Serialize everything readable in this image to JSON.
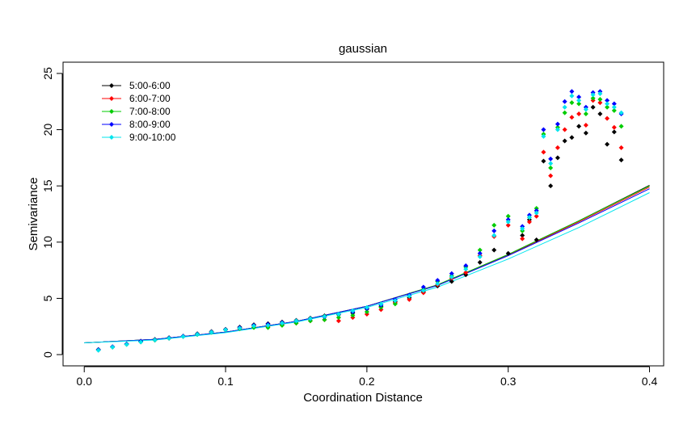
{
  "chart_data": {
    "type": "scatter",
    "title": "gaussian",
    "xlabel": "Coordination Distance",
    "ylabel": "Semivariance",
    "xlim": [
      -0.015,
      0.41
    ],
    "ylim": [
      -1,
      26
    ],
    "xticks": [
      0.0,
      0.1,
      0.2,
      0.3,
      0.4
    ],
    "xtick_labels": [
      "0.0",
      "0.1",
      "0.2",
      "0.3",
      "0.4"
    ],
    "yticks": [
      0,
      5,
      10,
      15,
      20,
      25
    ],
    "ytick_labels": [
      "0",
      "5",
      "10",
      "15",
      "20",
      "25"
    ],
    "grid": false,
    "legend_position": "top-left",
    "series": [
      {
        "name": "5:00-6:00",
        "color": "#000000",
        "points": [
          [
            0.01,
            0.45
          ],
          [
            0.02,
            0.7
          ],
          [
            0.03,
            0.95
          ],
          [
            0.04,
            1.2
          ],
          [
            0.05,
            1.35
          ],
          [
            0.06,
            1.5
          ],
          [
            0.07,
            1.65
          ],
          [
            0.08,
            1.85
          ],
          [
            0.09,
            2.05
          ],
          [
            0.1,
            2.25
          ],
          [
            0.11,
            2.45
          ],
          [
            0.12,
            2.65
          ],
          [
            0.13,
            2.75
          ],
          [
            0.14,
            2.9
          ],
          [
            0.15,
            3.05
          ],
          [
            0.16,
            3.25
          ],
          [
            0.17,
            3.45
          ],
          [
            0.18,
            3.55
          ],
          [
            0.19,
            3.7
          ],
          [
            0.2,
            4.05
          ],
          [
            0.21,
            4.3
          ],
          [
            0.22,
            4.7
          ],
          [
            0.23,
            5.05
          ],
          [
            0.24,
            5.6
          ],
          [
            0.25,
            6.1
          ],
          [
            0.26,
            6.5
          ],
          [
            0.27,
            7.1
          ],
          [
            0.28,
            8.2
          ],
          [
            0.29,
            9.3
          ],
          [
            0.3,
            9.0
          ],
          [
            0.31,
            10.6
          ],
          [
            0.315,
            12.0
          ],
          [
            0.32,
            10.2
          ],
          [
            0.325,
            17.2
          ],
          [
            0.33,
            15.0
          ],
          [
            0.335,
            17.5
          ],
          [
            0.34,
            19.0
          ],
          [
            0.345,
            19.3
          ],
          [
            0.35,
            20.3
          ],
          [
            0.355,
            19.7
          ],
          [
            0.36,
            22.0
          ],
          [
            0.365,
            21.4
          ],
          [
            0.37,
            18.7
          ],
          [
            0.375,
            19.8
          ],
          [
            0.38,
            17.3
          ]
        ],
        "fit": [
          [
            0.0,
            1.05
          ],
          [
            0.05,
            1.35
          ],
          [
            0.1,
            2.0
          ],
          [
            0.15,
            2.95
          ],
          [
            0.2,
            4.3
          ],
          [
            0.25,
            6.2
          ],
          [
            0.3,
            8.9
          ],
          [
            0.35,
            11.9
          ],
          [
            0.4,
            15.05
          ]
        ]
      },
      {
        "name": "6:00-7:00",
        "color": "#ff0000",
        "points": [
          [
            0.01,
            0.4
          ],
          [
            0.02,
            0.68
          ],
          [
            0.03,
            0.92
          ],
          [
            0.04,
            1.15
          ],
          [
            0.05,
            1.3
          ],
          [
            0.06,
            1.45
          ],
          [
            0.07,
            1.62
          ],
          [
            0.08,
            1.8
          ],
          [
            0.09,
            2.0
          ],
          [
            0.1,
            2.2
          ],
          [
            0.11,
            2.3
          ],
          [
            0.12,
            2.45
          ],
          [
            0.13,
            2.5
          ],
          [
            0.14,
            2.65
          ],
          [
            0.15,
            2.8
          ],
          [
            0.16,
            3.0
          ],
          [
            0.17,
            3.1
          ],
          [
            0.18,
            3.0
          ],
          [
            0.19,
            3.3
          ],
          [
            0.2,
            3.6
          ],
          [
            0.21,
            4.0
          ],
          [
            0.22,
            4.6
          ],
          [
            0.23,
            4.9
          ],
          [
            0.24,
            5.5
          ],
          [
            0.25,
            6.2
          ],
          [
            0.26,
            6.8
          ],
          [
            0.27,
            7.3
          ],
          [
            0.28,
            8.8
          ],
          [
            0.29,
            10.5
          ],
          [
            0.3,
            11.5
          ],
          [
            0.31,
            10.3
          ],
          [
            0.315,
            11.8
          ],
          [
            0.32,
            12.3
          ],
          [
            0.325,
            18.0
          ],
          [
            0.33,
            15.9
          ],
          [
            0.335,
            18.4
          ],
          [
            0.34,
            20.0
          ],
          [
            0.345,
            21.1
          ],
          [
            0.35,
            21.4
          ],
          [
            0.355,
            20.4
          ],
          [
            0.36,
            22.6
          ],
          [
            0.365,
            22.4
          ],
          [
            0.37,
            21.0
          ],
          [
            0.375,
            20.2
          ],
          [
            0.38,
            18.4
          ]
        ],
        "fit": [
          [
            0.0,
            1.05
          ],
          [
            0.05,
            1.35
          ],
          [
            0.1,
            2.0
          ],
          [
            0.15,
            2.95
          ],
          [
            0.2,
            4.3
          ],
          [
            0.25,
            6.2
          ],
          [
            0.3,
            8.85
          ],
          [
            0.35,
            11.8
          ],
          [
            0.4,
            14.9
          ]
        ]
      },
      {
        "name": "7:00-8:00",
        "color": "#00cc00",
        "points": [
          [
            0.01,
            0.42
          ],
          [
            0.02,
            0.66
          ],
          [
            0.03,
            0.9
          ],
          [
            0.04,
            1.12
          ],
          [
            0.05,
            1.28
          ],
          [
            0.06,
            1.45
          ],
          [
            0.07,
            1.6
          ],
          [
            0.08,
            1.78
          ],
          [
            0.09,
            1.98
          ],
          [
            0.1,
            2.2
          ],
          [
            0.11,
            2.3
          ],
          [
            0.12,
            2.4
          ],
          [
            0.13,
            2.4
          ],
          [
            0.14,
            2.6
          ],
          [
            0.15,
            2.8
          ],
          [
            0.16,
            3.0
          ],
          [
            0.17,
            3.1
          ],
          [
            0.18,
            3.3
          ],
          [
            0.19,
            3.5
          ],
          [
            0.2,
            3.8
          ],
          [
            0.21,
            4.2
          ],
          [
            0.22,
            4.5
          ],
          [
            0.23,
            5.2
          ],
          [
            0.24,
            5.8
          ],
          [
            0.25,
            6.5
          ],
          [
            0.26,
            7.0
          ],
          [
            0.27,
            7.8
          ],
          [
            0.28,
            9.3
          ],
          [
            0.29,
            11.5
          ],
          [
            0.3,
            12.3
          ],
          [
            0.31,
            11.0
          ],
          [
            0.315,
            12.2
          ],
          [
            0.32,
            13.0
          ],
          [
            0.325,
            19.6
          ],
          [
            0.33,
            16.6
          ],
          [
            0.335,
            20.2
          ],
          [
            0.34,
            21.5
          ],
          [
            0.345,
            22.4
          ],
          [
            0.35,
            22.3
          ],
          [
            0.355,
            21.4
          ],
          [
            0.36,
            22.8
          ],
          [
            0.365,
            22.7
          ],
          [
            0.37,
            22.0
          ],
          [
            0.375,
            21.7
          ],
          [
            0.38,
            20.3
          ]
        ],
        "fit": [
          [
            0.0,
            1.05
          ],
          [
            0.05,
            1.35
          ],
          [
            0.1,
            2.0
          ],
          [
            0.15,
            2.95
          ],
          [
            0.2,
            4.3
          ],
          [
            0.25,
            6.2
          ],
          [
            0.3,
            8.9
          ],
          [
            0.35,
            11.9
          ],
          [
            0.4,
            15.0
          ]
        ]
      },
      {
        "name": "8:00-9:00",
        "color": "#0000ff",
        "points": [
          [
            0.01,
            0.44
          ],
          [
            0.02,
            0.7
          ],
          [
            0.03,
            0.94
          ],
          [
            0.04,
            1.18
          ],
          [
            0.05,
            1.32
          ],
          [
            0.06,
            1.48
          ],
          [
            0.07,
            1.64
          ],
          [
            0.08,
            1.82
          ],
          [
            0.09,
            2.02
          ],
          [
            0.1,
            2.22
          ],
          [
            0.11,
            2.4
          ],
          [
            0.12,
            2.6
          ],
          [
            0.13,
            2.7
          ],
          [
            0.14,
            2.85
          ],
          [
            0.15,
            3.0
          ],
          [
            0.16,
            3.2
          ],
          [
            0.17,
            3.35
          ],
          [
            0.18,
            3.6
          ],
          [
            0.19,
            3.8
          ],
          [
            0.2,
            4.1
          ],
          [
            0.21,
            4.4
          ],
          [
            0.22,
            4.9
          ],
          [
            0.23,
            5.3
          ],
          [
            0.24,
            6.0
          ],
          [
            0.25,
            6.6
          ],
          [
            0.26,
            7.2
          ],
          [
            0.27,
            7.9
          ],
          [
            0.28,
            9.0
          ],
          [
            0.29,
            11.0
          ],
          [
            0.3,
            12.0
          ],
          [
            0.31,
            11.4
          ],
          [
            0.315,
            12.4
          ],
          [
            0.32,
            12.8
          ],
          [
            0.325,
            20.0
          ],
          [
            0.33,
            17.4
          ],
          [
            0.335,
            20.5
          ],
          [
            0.34,
            22.5
          ],
          [
            0.345,
            23.4
          ],
          [
            0.35,
            22.9
          ],
          [
            0.355,
            22.0
          ],
          [
            0.36,
            23.3
          ],
          [
            0.365,
            23.4
          ],
          [
            0.37,
            22.6
          ],
          [
            0.375,
            22.3
          ],
          [
            0.38,
            21.4
          ]
        ],
        "fit": [
          [
            0.0,
            1.05
          ],
          [
            0.05,
            1.35
          ],
          [
            0.1,
            2.0
          ],
          [
            0.15,
            2.95
          ],
          [
            0.2,
            4.3
          ],
          [
            0.25,
            6.15
          ],
          [
            0.3,
            8.8
          ],
          [
            0.35,
            11.7
          ],
          [
            0.4,
            14.75
          ]
        ]
      },
      {
        "name": "9:00-10:00",
        "color": "#00e5ee",
        "points": [
          [
            0.01,
            0.38
          ],
          [
            0.02,
            0.66
          ],
          [
            0.03,
            0.9
          ],
          [
            0.04,
            1.12
          ],
          [
            0.05,
            1.3
          ],
          [
            0.06,
            1.45
          ],
          [
            0.07,
            1.6
          ],
          [
            0.08,
            1.8
          ],
          [
            0.09,
            2.0
          ],
          [
            0.1,
            2.2
          ],
          [
            0.11,
            2.35
          ],
          [
            0.12,
            2.55
          ],
          [
            0.13,
            2.6
          ],
          [
            0.14,
            2.8
          ],
          [
            0.15,
            3.0
          ],
          [
            0.16,
            3.2
          ],
          [
            0.17,
            3.4
          ],
          [
            0.18,
            3.6
          ],
          [
            0.19,
            3.9
          ],
          [
            0.2,
            4.2
          ],
          [
            0.21,
            4.5
          ],
          [
            0.22,
            4.8
          ],
          [
            0.23,
            5.2
          ],
          [
            0.24,
            5.7
          ],
          [
            0.25,
            6.3
          ],
          [
            0.26,
            6.9
          ],
          [
            0.27,
            7.6
          ],
          [
            0.28,
            8.7
          ],
          [
            0.29,
            10.6
          ],
          [
            0.3,
            11.8
          ],
          [
            0.31,
            11.2
          ],
          [
            0.315,
            12.2
          ],
          [
            0.32,
            12.6
          ],
          [
            0.325,
            19.4
          ],
          [
            0.33,
            17.0
          ],
          [
            0.335,
            20.0
          ],
          [
            0.34,
            22.0
          ],
          [
            0.345,
            23.0
          ],
          [
            0.35,
            22.6
          ],
          [
            0.355,
            21.8
          ],
          [
            0.36,
            23.1
          ],
          [
            0.365,
            23.2
          ],
          [
            0.37,
            22.3
          ],
          [
            0.375,
            22.0
          ],
          [
            0.38,
            21.5
          ]
        ],
        "fit": [
          [
            0.0,
            1.05
          ],
          [
            0.05,
            1.3
          ],
          [
            0.1,
            1.95
          ],
          [
            0.15,
            2.9
          ],
          [
            0.2,
            4.2
          ],
          [
            0.25,
            6.0
          ],
          [
            0.3,
            8.5
          ],
          [
            0.35,
            11.3
          ],
          [
            0.4,
            14.4
          ]
        ]
      }
    ]
  }
}
